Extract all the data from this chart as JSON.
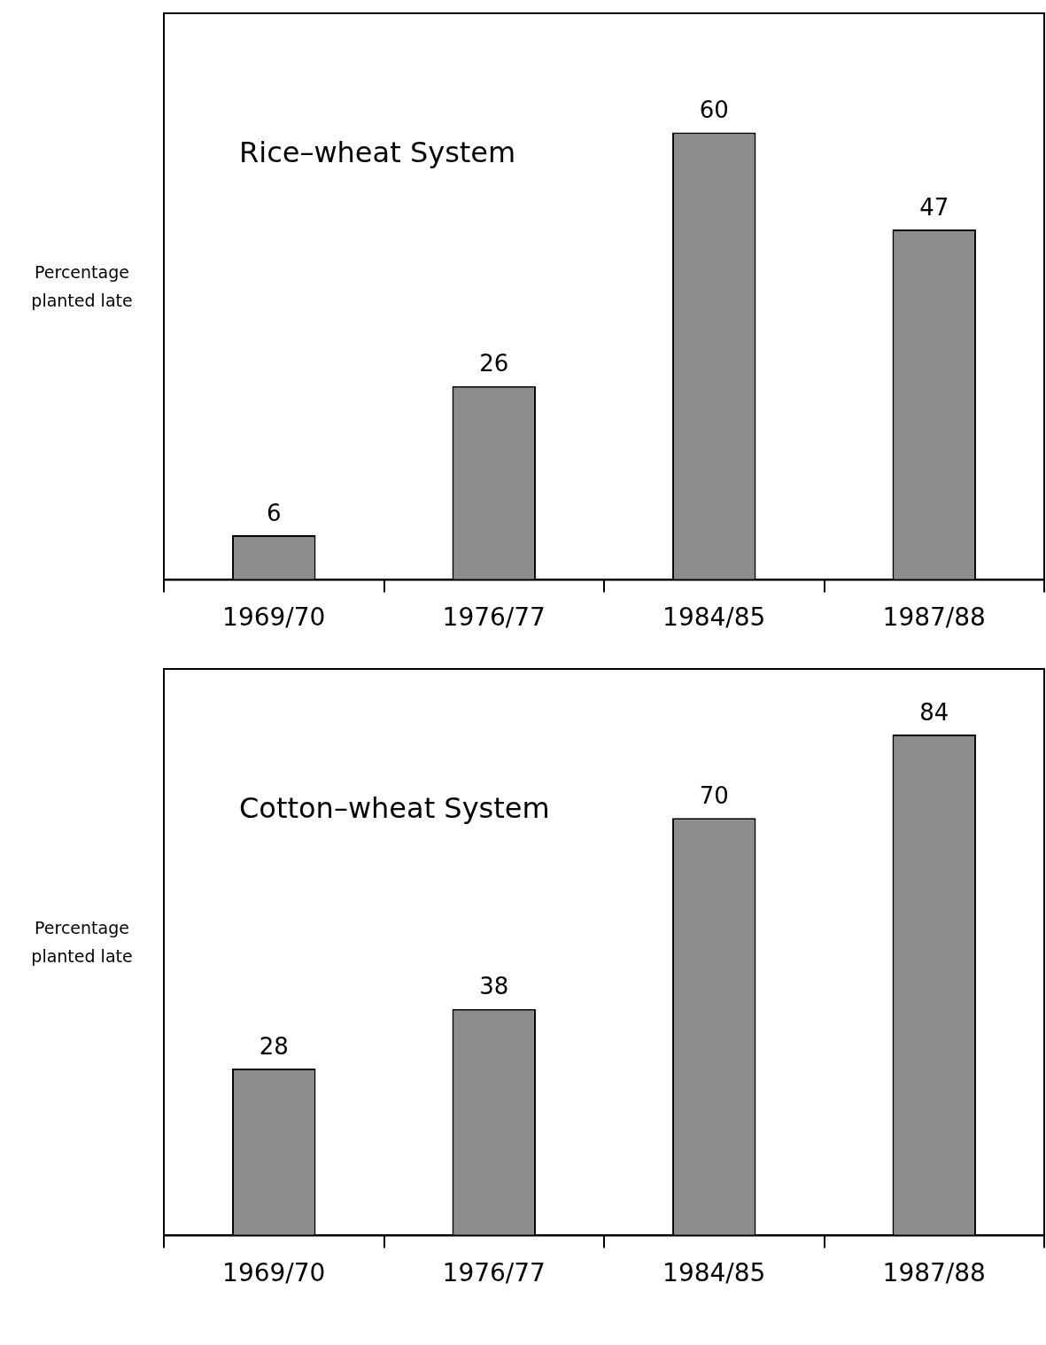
{
  "chart_data": [
    {
      "type": "bar",
      "title": "Rice–wheat System",
      "ylabel": "Percentage planted late",
      "categories": [
        "1969/70",
        "1976/77",
        "1984/85",
        "1987/88"
      ],
      "values": [
        6,
        26,
        60,
        47
      ],
      "color": "#8c8c8c",
      "data_labels": true,
      "ylim": [
        0,
        76
      ],
      "tick_labels": "x",
      "grid": false,
      "legend": false
    },
    {
      "type": "bar",
      "title": "Cotton–wheat System",
      "ylabel": "Percentage planted late",
      "categories": [
        "1969/70",
        "1976/77",
        "1984/85",
        "1987/88"
      ],
      "values": [
        28,
        38,
        70,
        84
      ],
      "color": "#8c8c8c",
      "data_labels": true,
      "ylim": [
        0,
        95
      ],
      "tick_labels": "x",
      "grid": false,
      "legend": false
    }
  ]
}
